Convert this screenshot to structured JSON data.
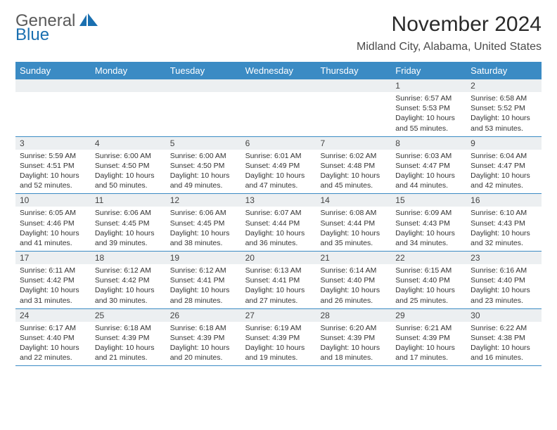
{
  "logo": {
    "text_general": "General",
    "text_blue": "Blue"
  },
  "title": "November 2024",
  "subtitle": "Midland City, Alabama, United States",
  "colors": {
    "header_bg": "#3b8bc4",
    "header_text": "#ffffff",
    "daynum_bg": "#eceff1",
    "border": "#3b8bc4",
    "logo_gray": "#5a5a5a",
    "logo_blue": "#1a6fb0"
  },
  "day_names": [
    "Sunday",
    "Monday",
    "Tuesday",
    "Wednesday",
    "Thursday",
    "Friday",
    "Saturday"
  ],
  "fonts": {
    "title_size": 30,
    "subtitle_size": 16,
    "header_size": 13,
    "daynum_size": 12,
    "body_size": 10.5
  },
  "weeks": [
    [
      null,
      null,
      null,
      null,
      null,
      {
        "n": "1",
        "sunrise": "6:57 AM",
        "sunset": "5:53 PM",
        "day_h": "10",
        "day_m": "55"
      },
      {
        "n": "2",
        "sunrise": "6:58 AM",
        "sunset": "5:52 PM",
        "day_h": "10",
        "day_m": "53"
      }
    ],
    [
      {
        "n": "3",
        "sunrise": "5:59 AM",
        "sunset": "4:51 PM",
        "day_h": "10",
        "day_m": "52"
      },
      {
        "n": "4",
        "sunrise": "6:00 AM",
        "sunset": "4:50 PM",
        "day_h": "10",
        "day_m": "50"
      },
      {
        "n": "5",
        "sunrise": "6:00 AM",
        "sunset": "4:50 PM",
        "day_h": "10",
        "day_m": "49"
      },
      {
        "n": "6",
        "sunrise": "6:01 AM",
        "sunset": "4:49 PM",
        "day_h": "10",
        "day_m": "47"
      },
      {
        "n": "7",
        "sunrise": "6:02 AM",
        "sunset": "4:48 PM",
        "day_h": "10",
        "day_m": "45"
      },
      {
        "n": "8",
        "sunrise": "6:03 AM",
        "sunset": "4:47 PM",
        "day_h": "10",
        "day_m": "44"
      },
      {
        "n": "9",
        "sunrise": "6:04 AM",
        "sunset": "4:47 PM",
        "day_h": "10",
        "day_m": "42"
      }
    ],
    [
      {
        "n": "10",
        "sunrise": "6:05 AM",
        "sunset": "4:46 PM",
        "day_h": "10",
        "day_m": "41"
      },
      {
        "n": "11",
        "sunrise": "6:06 AM",
        "sunset": "4:45 PM",
        "day_h": "10",
        "day_m": "39"
      },
      {
        "n": "12",
        "sunrise": "6:06 AM",
        "sunset": "4:45 PM",
        "day_h": "10",
        "day_m": "38"
      },
      {
        "n": "13",
        "sunrise": "6:07 AM",
        "sunset": "4:44 PM",
        "day_h": "10",
        "day_m": "36"
      },
      {
        "n": "14",
        "sunrise": "6:08 AM",
        "sunset": "4:44 PM",
        "day_h": "10",
        "day_m": "35"
      },
      {
        "n": "15",
        "sunrise": "6:09 AM",
        "sunset": "4:43 PM",
        "day_h": "10",
        "day_m": "34"
      },
      {
        "n": "16",
        "sunrise": "6:10 AM",
        "sunset": "4:43 PM",
        "day_h": "10",
        "day_m": "32"
      }
    ],
    [
      {
        "n": "17",
        "sunrise": "6:11 AM",
        "sunset": "4:42 PM",
        "day_h": "10",
        "day_m": "31"
      },
      {
        "n": "18",
        "sunrise": "6:12 AM",
        "sunset": "4:42 PM",
        "day_h": "10",
        "day_m": "30"
      },
      {
        "n": "19",
        "sunrise": "6:12 AM",
        "sunset": "4:41 PM",
        "day_h": "10",
        "day_m": "28"
      },
      {
        "n": "20",
        "sunrise": "6:13 AM",
        "sunset": "4:41 PM",
        "day_h": "10",
        "day_m": "27"
      },
      {
        "n": "21",
        "sunrise": "6:14 AM",
        "sunset": "4:40 PM",
        "day_h": "10",
        "day_m": "26"
      },
      {
        "n": "22",
        "sunrise": "6:15 AM",
        "sunset": "4:40 PM",
        "day_h": "10",
        "day_m": "25"
      },
      {
        "n": "23",
        "sunrise": "6:16 AM",
        "sunset": "4:40 PM",
        "day_h": "10",
        "day_m": "23"
      }
    ],
    [
      {
        "n": "24",
        "sunrise": "6:17 AM",
        "sunset": "4:40 PM",
        "day_h": "10",
        "day_m": "22"
      },
      {
        "n": "25",
        "sunrise": "6:18 AM",
        "sunset": "4:39 PM",
        "day_h": "10",
        "day_m": "21"
      },
      {
        "n": "26",
        "sunrise": "6:18 AM",
        "sunset": "4:39 PM",
        "day_h": "10",
        "day_m": "20"
      },
      {
        "n": "27",
        "sunrise": "6:19 AM",
        "sunset": "4:39 PM",
        "day_h": "10",
        "day_m": "19"
      },
      {
        "n": "28",
        "sunrise": "6:20 AM",
        "sunset": "4:39 PM",
        "day_h": "10",
        "day_m": "18"
      },
      {
        "n": "29",
        "sunrise": "6:21 AM",
        "sunset": "4:39 PM",
        "day_h": "10",
        "day_m": "17"
      },
      {
        "n": "30",
        "sunrise": "6:22 AM",
        "sunset": "4:38 PM",
        "day_h": "10",
        "day_m": "16"
      }
    ]
  ],
  "labels": {
    "sunrise_prefix": "Sunrise: ",
    "sunset_prefix": "Sunset: ",
    "daylight_prefix": "Daylight: ",
    "hours_word": " hours",
    "and_word": "and ",
    "minutes_word": " minutes."
  }
}
